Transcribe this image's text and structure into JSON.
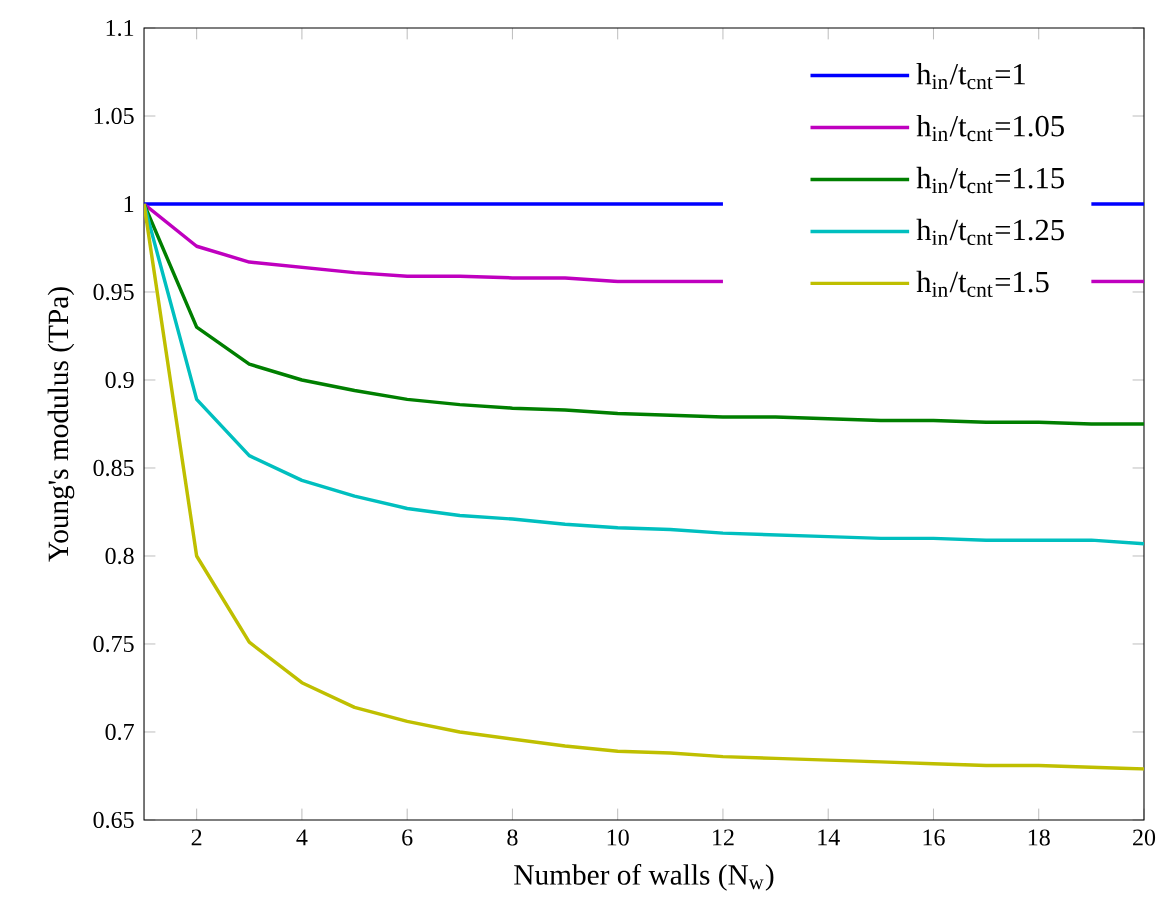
{
  "chart_data": {
    "type": "line",
    "xlabel": "Number of walls (N$_{w}$)",
    "ylabel": "Young's modulus (TPa)",
    "x": [
      1,
      2,
      3,
      4,
      5,
      6,
      7,
      8,
      9,
      10,
      11,
      12,
      13,
      14,
      15,
      16,
      17,
      18,
      19,
      20
    ],
    "xlim": [
      1,
      20
    ],
    "xticks": [
      2,
      4,
      6,
      8,
      10,
      12,
      14,
      16,
      18,
      20
    ],
    "ylim": [
      0.65,
      1.1
    ],
    "yticks": [
      0.65,
      0.7,
      0.75,
      0.8,
      0.85,
      0.9,
      0.95,
      1,
      1.05,
      1.1
    ],
    "legend": "top right",
    "series": [
      {
        "name": "h$_{in}$/t$_{cnt}$=1",
        "color": "#0000ff",
        "values": [
          1,
          1,
          1,
          1,
          1,
          1,
          1,
          1,
          1,
          1,
          1,
          1,
          null,
          null,
          null,
          null,
          null,
          null,
          1,
          1
        ]
      },
      {
        "name": "h$_{in}$/t$_{cnt}$=1.05",
        "color": "#bf00bf",
        "values": [
          1,
          0.976,
          0.967,
          0.964,
          0.961,
          0.959,
          0.959,
          0.958,
          0.958,
          0.956,
          0.956,
          0.956,
          null,
          null,
          null,
          null,
          null,
          null,
          0.956,
          0.956
        ]
      },
      {
        "name": "h$_{in}$/t$_{cnt}$=1.15",
        "color": "#007f00",
        "values": [
          1,
          0.93,
          0.909,
          0.9,
          0.894,
          0.889,
          0.886,
          0.884,
          0.883,
          0.881,
          0.88,
          0.879,
          0.879,
          0.878,
          0.877,
          0.877,
          0.876,
          0.876,
          0.875,
          0.875
        ]
      },
      {
        "name": "h$_{in}$/t$_{cnt}$=1.25",
        "color": "#00bfbf",
        "values": [
          1,
          0.889,
          0.857,
          0.843,
          0.834,
          0.827,
          0.823,
          0.821,
          0.818,
          0.816,
          0.815,
          0.813,
          0.812,
          0.811,
          0.81,
          0.81,
          0.809,
          0.809,
          0.809,
          0.807
        ]
      },
      {
        "name": "h$_{in}$/t$_{cnt}$=1.5",
        "color": "#bfbf00",
        "values": [
          1,
          0.8,
          0.751,
          0.728,
          0.714,
          0.706,
          0.7,
          0.696,
          0.692,
          0.689,
          0.688,
          0.686,
          0.685,
          0.684,
          0.683,
          0.682,
          0.681,
          0.681,
          0.68,
          0.679
        ]
      }
    ]
  }
}
